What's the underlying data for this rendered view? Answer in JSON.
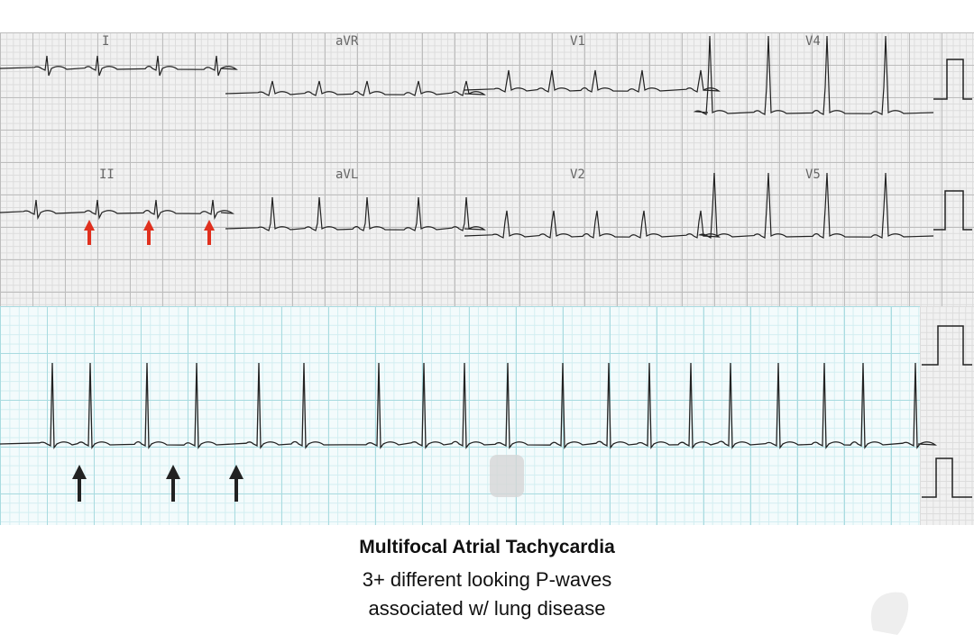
{
  "leads": {
    "top": [
      "I",
      "aVR",
      "V1",
      "V4"
    ],
    "middle": [
      "II",
      "aVL",
      "V2",
      "V5"
    ]
  },
  "caption": {
    "title": "Multifocal Atrial Tachycardia",
    "lines": [
      "3+ different looking P-waves",
      "associated w/ lung disease"
    ]
  }
}
